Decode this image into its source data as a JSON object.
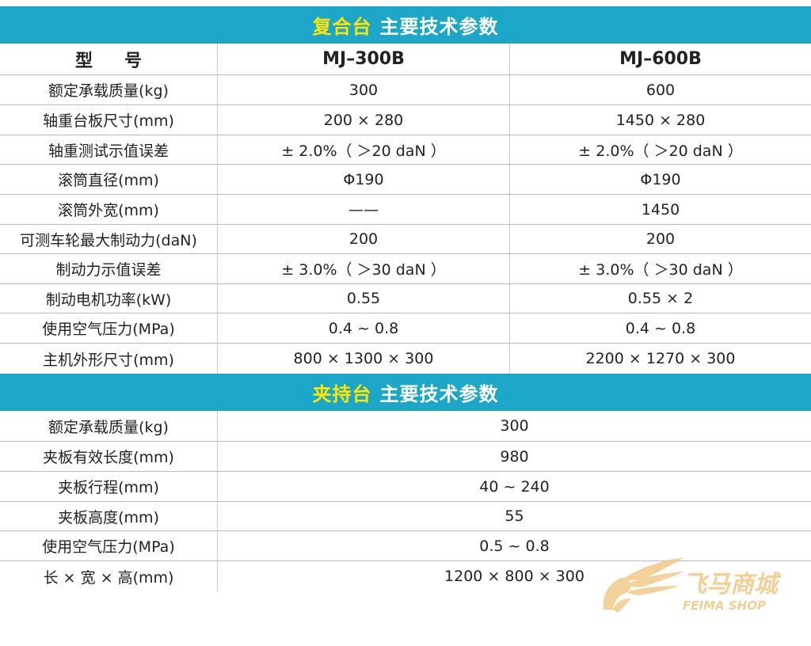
{
  "section1": {
    "title_highlight": "复合台",
    "title_rest": "主要技术参数",
    "header": {
      "label": "型号",
      "col1": "MJ–300B",
      "col2": "MJ–600B"
    },
    "rows": [
      {
        "label": "额定承载质量(kg)",
        "v1": "300",
        "v2": "600"
      },
      {
        "label": "轴重台板尺寸(mm)",
        "v1": "200 × 280",
        "v2": "1450 × 280"
      },
      {
        "label": "轴重测试示值误差",
        "v1": "± 2.0%（ ＞20 daN ）",
        "v2": "± 2.0%（ ＞20 daN ）"
      },
      {
        "label": "滚筒直径(mm)",
        "v1": "Φ190",
        "v2": "Φ190"
      },
      {
        "label": "滚筒外宽(mm)",
        "v1": "——",
        "v2": "1450"
      },
      {
        "label": "可测车轮最大制动力(daN)",
        "v1": "200",
        "v2": "200"
      },
      {
        "label": "制动力示值误差",
        "v1": "± 3.0%（ ＞30 daN ）",
        "v2": "± 3.0%（ ＞30 daN ）"
      },
      {
        "label": "制动电机功率(kW)",
        "v1": "0.55",
        "v2": "0.55 × 2"
      },
      {
        "label": "使用空气压力(MPa)",
        "v1": "0.4 ~ 0.8",
        "v2": "0.4 ~ 0.8"
      },
      {
        "label": "主机外形尺寸(mm)",
        "v1": "800 × 1300 × 300",
        "v2": "2200 × 1270 × 300"
      }
    ]
  },
  "section2": {
    "title_highlight": "夹持台",
    "title_rest": "主要技术参数",
    "rows": [
      {
        "label": "额定承载质量(kg)",
        "v": "300"
      },
      {
        "label": "夹板有效长度(mm)",
        "v": "980"
      },
      {
        "label": "夹板行程(mm)",
        "v": "40 ~ 240"
      },
      {
        "label": "夹板高度(mm)",
        "v": "55"
      },
      {
        "label": "使用空气压力(MPa)",
        "v": "0.5 ~ 0.8"
      },
      {
        "label": "长 × 宽 × 高(mm)",
        "v": "1200 × 800 × 300"
      }
    ]
  },
  "watermark": {
    "text_cn": "飞马商城",
    "text_en": "FEIMA SHOP",
    "color": "#f2c98a"
  },
  "colors": {
    "band": "#1ca6c7",
    "highlight": "#ffe600"
  }
}
